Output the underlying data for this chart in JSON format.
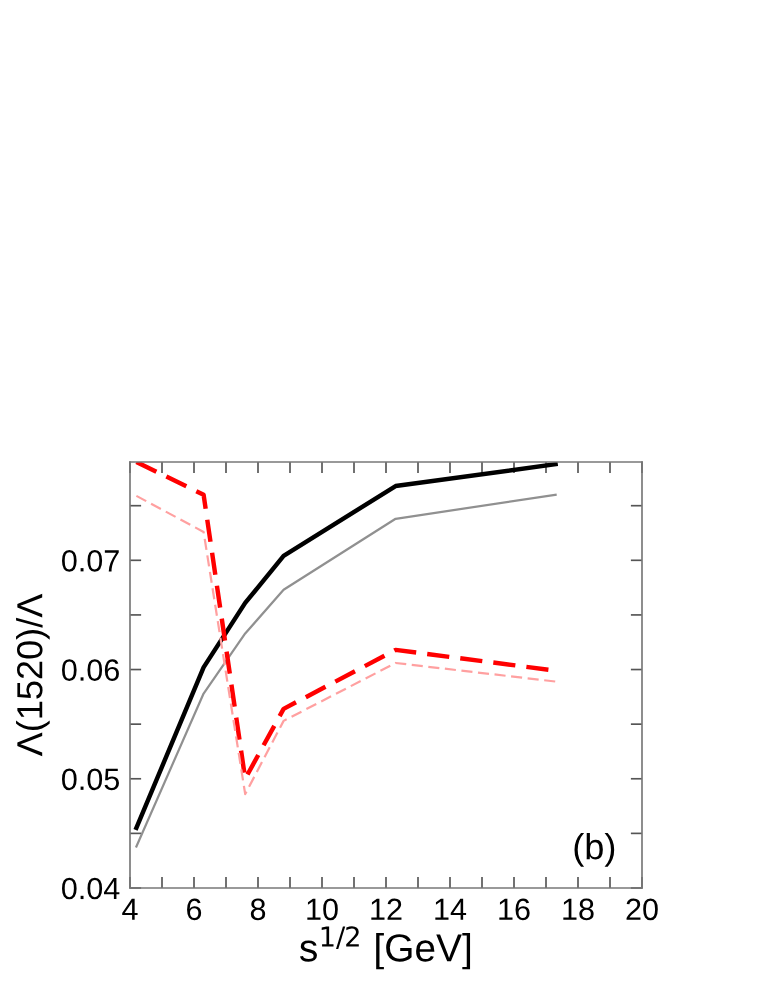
{
  "chart_data": {
    "type": "line",
    "xlabel": "s$^{1/2}$ [GeV]",
    "ylabel": "Λ(1520)/Λ",
    "annotations": [
      "(b)"
    ],
    "x": [
      4.2,
      6.3,
      7.6,
      8.8,
      12.3,
      17.3
    ],
    "series": [
      {
        "color": "#000000",
        "values": [
          0.0455,
          0.0602,
          0.0661,
          0.0704,
          0.0768,
          0.0788
        ],
        "line_style": "solid"
      },
      {
        "color": "#909090",
        "values": [
          0.0438,
          0.0578,
          0.0633,
          0.0673,
          0.0738,
          0.076
        ],
        "line_style": "solid"
      },
      {
        "color": "#ff0000",
        "values": [
          0.079,
          0.076,
          0.05,
          0.0564,
          0.0618,
          0.0599
        ],
        "line_style": "dashed"
      },
      {
        "color": "#ffa0a0",
        "values": [
          0.0759,
          0.0726,
          0.0486,
          0.0553,
          0.0606,
          0.0589
        ],
        "line_style": "dashed"
      }
    ],
    "xlim": [
      4,
      20
    ],
    "ylim": [
      0.04,
      0.079
    ],
    "xticks": [
      4,
      {
        "value": 5,
        "label": null
      },
      6,
      {
        "value": 7,
        "label": null
      },
      8,
      {
        "value": 9,
        "label": null
      },
      10,
      {
        "value": 11,
        "label": null
      },
      12,
      {
        "value": 13,
        "label": null
      },
      14,
      {
        "value": 15,
        "label": null
      },
      16,
      {
        "value": 17,
        "label": null
      },
      18,
      {
        "value": 19,
        "label": null
      },
      20
    ],
    "yticks": [
      0.04,
      {
        "value": 0.045,
        "label": null
      },
      0.05,
      {
        "value": 0.055,
        "label": null
      },
      0.06,
      {
        "value": 0.065,
        "label": null
      },
      0.07,
      {
        "value": 0.075,
        "label": null
      }
    ],
    "grid": false,
    "legend": false,
    "marker": "none"
  }
}
